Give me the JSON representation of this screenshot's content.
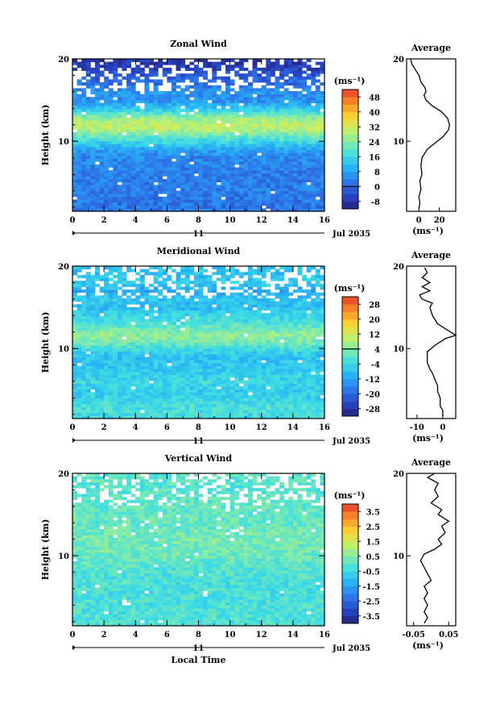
{
  "chart_data": [
    {
      "type": "heatmap",
      "title": "Zonal Wind",
      "ylabel": "Height (km)",
      "xlabel": "",
      "x_ticks": [
        "0",
        "2",
        "4",
        "6",
        "8",
        "10",
        "12",
        "14",
        "16"
      ],
      "y_ticks": [
        "20",
        "10"
      ],
      "xlim": [
        0,
        16
      ],
      "ylim": [
        1.5,
        20
      ],
      "date_axis": {
        "day": "11",
        "label": "Jul 2035"
      },
      "colorbar": {
        "unit": "(ms⁻¹)",
        "ticks": [
          "48",
          "40",
          "32",
          "24",
          "16",
          "8",
          "0",
          "-8"
        ],
        "range": [
          -12,
          52
        ]
      },
      "profile_by_height": [
        [
          2,
          2
        ],
        [
          3,
          2
        ],
        [
          4,
          3
        ],
        [
          5,
          3
        ],
        [
          6,
          3
        ],
        [
          7,
          4
        ],
        [
          8,
          4
        ],
        [
          9,
          8
        ],
        [
          10,
          16
        ],
        [
          11,
          24
        ],
        [
          11.5,
          29
        ],
        [
          12,
          30
        ],
        [
          12.5,
          28
        ],
        [
          13,
          24
        ],
        [
          14,
          13
        ],
        [
          15,
          5
        ],
        [
          16,
          6
        ],
        [
          17,
          1
        ],
        [
          18,
          -2
        ],
        [
          19,
          -6
        ],
        [
          20,
          -8
        ]
      ],
      "average_profile": {
        "title": "Average",
        "xlabel": "(ms⁻¹)",
        "x_ticks": [
          "0",
          "20"
        ],
        "y_ticks": [
          "20",
          "10"
        ],
        "xlim": [
          -12,
          36
        ],
        "ylim": [
          1.5,
          20
        ],
        "points": [
          [
            0,
            1.8
          ],
          [
            1,
            2.5
          ],
          [
            0,
            3.2
          ],
          [
            2,
            4.2
          ],
          [
            1,
            5.2
          ],
          [
            3,
            6
          ],
          [
            2,
            7
          ],
          [
            3,
            8
          ],
          [
            8,
            9
          ],
          [
            16,
            9.8
          ],
          [
            24,
            10.6
          ],
          [
            29,
            11.4
          ],
          [
            30,
            12
          ],
          [
            28,
            12.8
          ],
          [
            22,
            13.6
          ],
          [
            13,
            14.3
          ],
          [
            7,
            15
          ],
          [
            5,
            15.6
          ],
          [
            7,
            16
          ],
          [
            6,
            16.5
          ],
          [
            2,
            17.2
          ],
          [
            0,
            18
          ],
          [
            -4,
            18.8
          ],
          [
            -7,
            19.4
          ],
          [
            -8,
            20
          ]
        ]
      }
    },
    {
      "type": "heatmap",
      "title": "Meridional Wind",
      "ylabel": "Height (km)",
      "xlabel": "",
      "x_ticks": [
        "0",
        "2",
        "4",
        "6",
        "8",
        "10",
        "12",
        "14",
        "16"
      ],
      "y_ticks": [
        "20",
        "10"
      ],
      "xlim": [
        0,
        16
      ],
      "ylim": [
        1.5,
        20
      ],
      "date_axis": {
        "day": "11",
        "label": "Jul 2035"
      },
      "colorbar": {
        "unit": "(ms⁻¹)",
        "ticks": [
          "28",
          "20",
          "12",
          "4",
          "-4",
          "-12",
          "-20",
          "-28"
        ],
        "range": [
          -32,
          32
        ]
      },
      "profile_by_height": [
        [
          2,
          -3
        ],
        [
          3,
          -2
        ],
        [
          4,
          -5
        ],
        [
          5,
          -6
        ],
        [
          6,
          -4
        ],
        [
          7,
          -6
        ],
        [
          8,
          -7
        ],
        [
          9,
          -8
        ],
        [
          10,
          -3
        ],
        [
          11,
          3
        ],
        [
          11.5,
          5
        ],
        [
          12,
          4
        ],
        [
          13,
          -2
        ],
        [
          14,
          -4
        ],
        [
          15,
          -9
        ],
        [
          16,
          -7
        ],
        [
          17,
          -11
        ],
        [
          18,
          -6
        ],
        [
          19,
          -8
        ],
        [
          20,
          -7
        ]
      ],
      "average_profile": {
        "title": "Average",
        "xlabel": "(ms⁻¹)",
        "x_ticks": [
          "-10",
          "0"
        ],
        "y_ticks": [
          "20",
          "10"
        ],
        "xlim": [
          -14,
          5
        ],
        "ylim": [
          1.5,
          20
        ],
        "points": [
          [
            0,
            1.8
          ],
          [
            0,
            2.5
          ],
          [
            -1,
            3
          ],
          [
            -1,
            4
          ],
          [
            -2,
            4.8
          ],
          [
            -2,
            5.5
          ],
          [
            -3,
            6.2
          ],
          [
            -4,
            7
          ],
          [
            -5,
            7.5
          ],
          [
            -6,
            8.3
          ],
          [
            -6,
            9
          ],
          [
            -6,
            9.6
          ],
          [
            -3,
            10.4
          ],
          [
            1,
            11.2
          ],
          [
            5,
            11.6
          ],
          [
            2,
            12.2
          ],
          [
            -2,
            13
          ],
          [
            -4,
            14
          ],
          [
            -5,
            15
          ],
          [
            -4,
            15.5
          ],
          [
            -8,
            16
          ],
          [
            -9,
            16.5
          ],
          [
            -5,
            17
          ],
          [
            -8,
            17.5
          ],
          [
            -5,
            18
          ],
          [
            -8,
            18.6
          ],
          [
            -6,
            19.2
          ],
          [
            -7,
            19.8
          ]
        ]
      }
    },
    {
      "type": "heatmap",
      "title": "Vertical Wind",
      "ylabel": "Height (km)",
      "xlabel": "Local Time",
      "x_ticks": [
        "0",
        "2",
        "4",
        "6",
        "8",
        "10",
        "12",
        "14",
        "16"
      ],
      "y_ticks": [
        "20",
        "10"
      ],
      "xlim": [
        0,
        16
      ],
      "ylim": [
        1.5,
        20
      ],
      "date_axis": {
        "day": "11",
        "label": "Jul 2035"
      },
      "colorbar": {
        "unit": "(ms⁻¹)",
        "ticks": [
          "3.5",
          "2.5",
          "1.5",
          "0.5",
          "-0.5",
          "-1.5",
          "-2.5",
          "-3.5"
        ],
        "range": [
          -4,
          4
        ]
      },
      "profile_by_height": [
        [
          2,
          -0.2
        ],
        [
          5,
          -0.3
        ],
        [
          8,
          -0.2
        ],
        [
          10,
          0.2
        ],
        [
          12,
          0.3
        ],
        [
          14,
          0.1
        ],
        [
          16,
          0.1
        ],
        [
          18,
          -0.1
        ],
        [
          20,
          0
        ]
      ],
      "average_profile": {
        "title": "Average",
        "xlabel": "(ms⁻¹)",
        "x_ticks": [
          "-0.05",
          "0.05"
        ],
        "y_ticks": [
          "20",
          "10"
        ],
        "xlim": [
          -0.07,
          0.07
        ],
        "ylim": [
          1.5,
          20
        ],
        "points": [
          [
            -0.02,
            1.8
          ],
          [
            -0.01,
            2.5
          ],
          [
            -0.02,
            3.2
          ],
          [
            -0.01,
            4
          ],
          [
            -0.02,
            4.8
          ],
          [
            -0.01,
            5.5
          ],
          [
            -0.02,
            6.3
          ],
          [
            0.0,
            7
          ],
          [
            -0.01,
            7.8
          ],
          [
            -0.02,
            8.6
          ],
          [
            -0.03,
            9.4
          ],
          [
            -0.02,
            10.2
          ],
          [
            0.01,
            10.8
          ],
          [
            0.03,
            11.4
          ],
          [
            0.02,
            12
          ],
          [
            0.04,
            12.8
          ],
          [
            0.03,
            13.6
          ],
          [
            0.05,
            14.2
          ],
          [
            0.02,
            15
          ],
          [
            0.03,
            15.6
          ],
          [
            0.0,
            16.4
          ],
          [
            0.02,
            17.2
          ],
          [
            0.01,
            18
          ],
          [
            0.02,
            18.8
          ],
          [
            -0.01,
            19.5
          ],
          [
            0.01,
            20
          ]
        ]
      }
    }
  ]
}
